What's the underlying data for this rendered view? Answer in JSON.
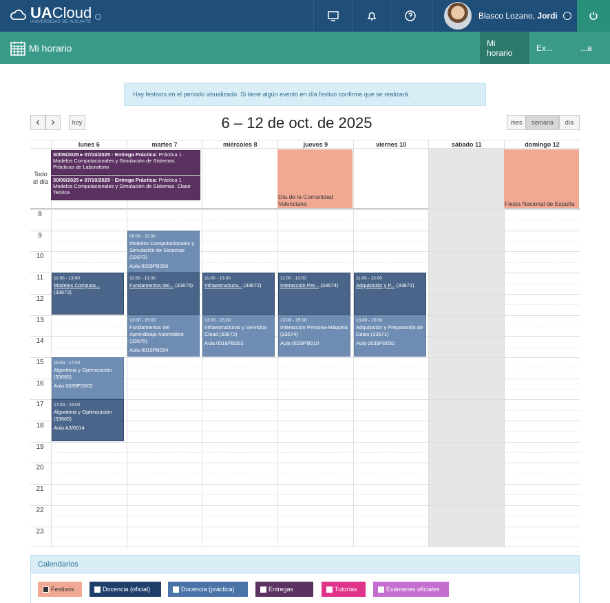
{
  "app": {
    "logo_main": "UA",
    "logo_light": "Cloud",
    "logo_sub": "UNIVERSIDAD DE ALICANTE"
  },
  "user": {
    "first": "Blasco Lozano,",
    "last": "Jordi"
  },
  "module": {
    "title": "Mi horario",
    "tabs": [
      "Mi horario",
      "Ex...",
      "...a"
    ]
  },
  "alert": "Hay festivos en el período visualizado. Si tiene algún evento en día festivo confirme que se realizará.",
  "nav": {
    "today": "hoy",
    "range_title": "6 – 12 de oct. de 2025",
    "views": [
      "mes",
      "semana",
      "día"
    ]
  },
  "days": [
    "lunes 6",
    "martes 7",
    "miércoles 8",
    "jueves 9",
    "viernes 10",
    "sábado 11",
    "domingo 12"
  ],
  "allday_label": [
    "Todo",
    "el día"
  ],
  "allday_events": [
    {
      "date": "30/09/2025 ▸ 07/10/2025",
      "title": "· Entrega Práctica:",
      "body": "Práctica 1 · Modelos Computacionales y Simulación de Sistemas. Prácticas de Laboratorio"
    },
    {
      "date": "30/09/2025 ▸ 07/10/2025",
      "title": "· Entrega Práctica:",
      "body": "Práctica 1 · Modelos Computacionales y Simulación de Sistemas. Clase Teórica"
    }
  ],
  "holidays": [
    {
      "day": "jueves 9",
      "label": "Día de la Comunidad Valenciana"
    },
    {
      "day": "domingo 12",
      "label": "Fiesta Nacional de España"
    }
  ],
  "hours": [
    "8",
    "9",
    "10",
    "11",
    "12",
    "13",
    "14",
    "15",
    "16",
    "17",
    "18",
    "19",
    "20",
    "21",
    "22",
    "23"
  ],
  "events": [
    {
      "time": "09:00 - 11:00",
      "title": "Modelos Computacionales y Simulación de Sistemas (33673)",
      "room": "Aula 0039PB056"
    },
    {
      "time": "11:00 - 13:00",
      "title": "Modelos Computa...",
      "code": "(33673)"
    },
    {
      "time": "11:00 - 13:00",
      "title": "Fundamentos del...",
      "code": "(33675)"
    },
    {
      "time": "11:00 - 13:00",
      "title": "Infraestructura...",
      "code": "(33672)"
    },
    {
      "time": "11:00 - 13:00",
      "title": "Interacción Per...",
      "code": "(33674)"
    },
    {
      "time": "11:00 - 13:00",
      "title": "Adquisición y P...",
      "code": "(33671)"
    },
    {
      "time": "13:00 - 15:00",
      "title": "Fundamentos del Aprendizaje Automático (33675)",
      "room": "Aula 0016PB054"
    },
    {
      "time": "13:00 - 15:00",
      "title": "Infraestructuras y Servicios Cloud (33672)",
      "room": "Aula 0016PB053"
    },
    {
      "time": "13:00 - 15:00",
      "title": "Interacción Persona-Máquina (33674)",
      "room": "Aula 0039PB010"
    },
    {
      "time": "13:00 - 15:00",
      "title": "Adquisición y Preparación de Datos (33671)",
      "room": "Aula 0039PB052"
    },
    {
      "time": "15:00 - 17:00",
      "title": "Algoritmia y Optimización (33665)",
      "room": "Aula 0039PS003"
    },
    {
      "time": "17:00 - 19:00",
      "title": "Algoritmia y Optimización (33665)",
      "room": "Aula A3/0014"
    }
  ],
  "calendars": {
    "title": "Calendarios",
    "items": [
      {
        "label": "Festivos",
        "color": "#f1a993",
        "checked": true
      },
      {
        "label": "Docencia (oficial)",
        "color": "#1f3f6b",
        "checked": false
      },
      {
        "label": "Docencia (práctica)",
        "color": "#4a73a8",
        "checked": false
      },
      {
        "label": "Entregas",
        "color": "#5a3160",
        "checked": false
      },
      {
        "label": "Tutorías",
        "color": "#e0338a",
        "checked": false
      },
      {
        "label": "Exámenes oficiales",
        "color": "#c46fcf",
        "checked": false
      }
    ]
  },
  "colors": {
    "topbar": "#1f4e79",
    "subbar": "#3a9a8a",
    "event_dark": "#4a6589",
    "event_light": "#6f8db3",
    "event_purple": "#5a3160",
    "holiday": "#f1a993"
  }
}
